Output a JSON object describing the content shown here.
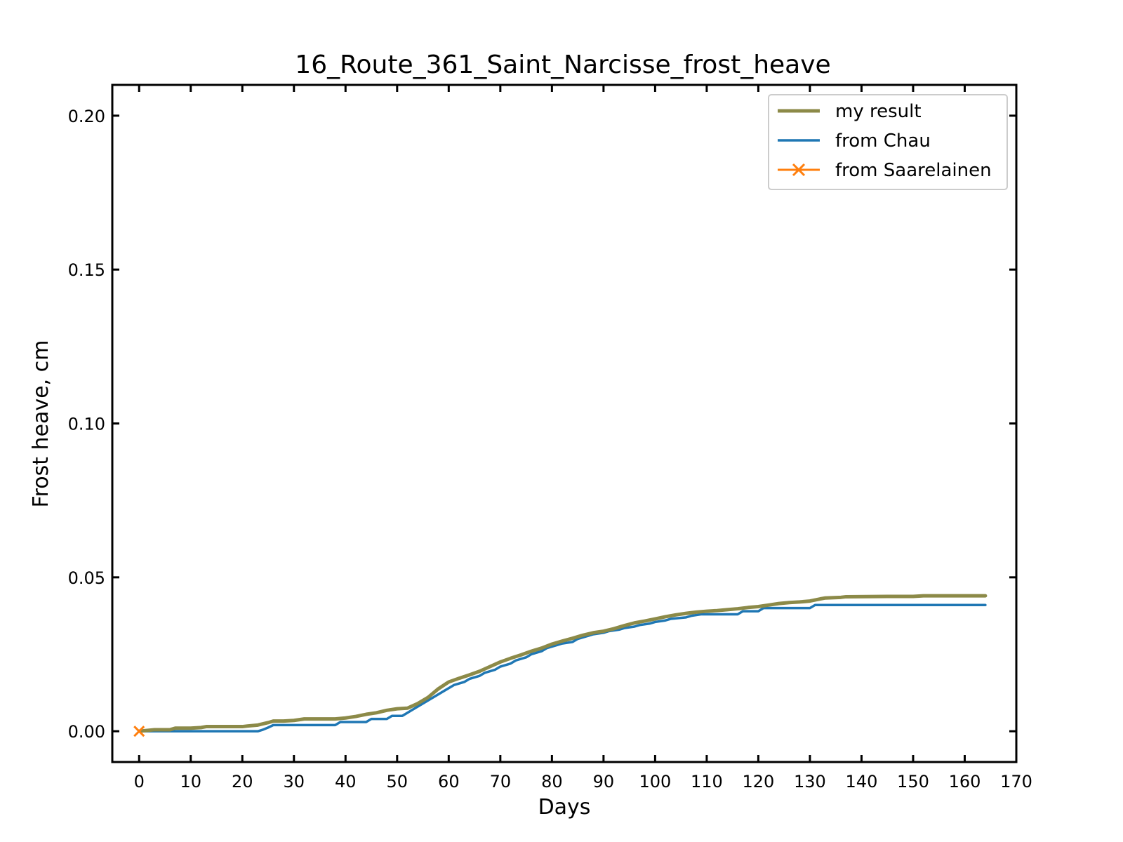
{
  "chart_data": {
    "type": "line",
    "title": "16_Route_361_Saint_Narcisse_frost_heave",
    "xlabel": "Days",
    "ylabel": "Frost heave, cm",
    "xlim": [
      -5.2,
      170
    ],
    "ylim": [
      -0.01,
      0.21
    ],
    "x_ticks": [
      0,
      10,
      20,
      30,
      40,
      50,
      60,
      70,
      80,
      90,
      100,
      110,
      120,
      130,
      140,
      150,
      160,
      170
    ],
    "y_ticks": [
      0.0,
      0.05,
      0.1,
      0.15,
      0.2
    ],
    "y_tick_labels": [
      "0.00",
      "0.05",
      "0.10",
      "0.15",
      "0.20"
    ],
    "grid": false,
    "legend_position": "top-right",
    "series": [
      {
        "name": "my result",
        "color": "#8c8a48",
        "marker": "none",
        "x": [
          0,
          3,
          6,
          7,
          10,
          12,
          13,
          15,
          20,
          21,
          23,
          25,
          26,
          28,
          30,
          32,
          35,
          38,
          40,
          42,
          44,
          46,
          48,
          50,
          52,
          54,
          56,
          58,
          60,
          62,
          64,
          66,
          68,
          70,
          72,
          74,
          76,
          78,
          80,
          82,
          84,
          86,
          88,
          90,
          92,
          94,
          96,
          98,
          100,
          102,
          104,
          106,
          108,
          110,
          112,
          114,
          116,
          118,
          120,
          122,
          124,
          126,
          128,
          130,
          132,
          133,
          136,
          137,
          145,
          150,
          152,
          164
        ],
        "y": [
          0.0,
          0.0005,
          0.0005,
          0.001,
          0.001,
          0.0012,
          0.0015,
          0.0015,
          0.0015,
          0.0017,
          0.002,
          0.0028,
          0.0033,
          0.0033,
          0.0035,
          0.004,
          0.004,
          0.004,
          0.0043,
          0.0048,
          0.0055,
          0.006,
          0.0068,
          0.0073,
          0.0075,
          0.009,
          0.011,
          0.0138,
          0.016,
          0.0172,
          0.0183,
          0.0195,
          0.021,
          0.0225,
          0.0237,
          0.0248,
          0.026,
          0.027,
          0.0283,
          0.0293,
          0.0302,
          0.0312,
          0.032,
          0.0325,
          0.0333,
          0.0343,
          0.0352,
          0.0358,
          0.0365,
          0.0372,
          0.0378,
          0.0383,
          0.0387,
          0.039,
          0.0392,
          0.0395,
          0.0398,
          0.0402,
          0.0405,
          0.041,
          0.0415,
          0.0418,
          0.042,
          0.0423,
          0.043,
          0.0433,
          0.0435,
          0.0437,
          0.0438,
          0.0438,
          0.044,
          0.044
        ]
      },
      {
        "name": "from Chau",
        "color": "#1f77b4",
        "marker": "none",
        "x": [
          0,
          23,
          24,
          25,
          26,
          38,
          39,
          44,
          45,
          48,
          49,
          51,
          52,
          53,
          55,
          57,
          60,
          61,
          63,
          64,
          66,
          67,
          69,
          70,
          72,
          73,
          75,
          76,
          78,
          79,
          81,
          82,
          84,
          85,
          87,
          88,
          90,
          91,
          93,
          94,
          96,
          97,
          99,
          100,
          102,
          103,
          106,
          107,
          109,
          110,
          116,
          117,
          120,
          121,
          130,
          131,
          164
        ],
        "y": [
          0.0,
          0.0,
          0.0005,
          0.0012,
          0.002,
          0.002,
          0.003,
          0.003,
          0.004,
          0.004,
          0.005,
          0.005,
          0.006,
          0.007,
          0.009,
          0.011,
          0.014,
          0.015,
          0.016,
          0.017,
          0.018,
          0.019,
          0.02,
          0.021,
          0.022,
          0.023,
          0.024,
          0.025,
          0.026,
          0.027,
          0.028,
          0.0285,
          0.029,
          0.03,
          0.031,
          0.0315,
          0.032,
          0.0325,
          0.033,
          0.0335,
          0.034,
          0.0345,
          0.035,
          0.0355,
          0.036,
          0.0365,
          0.037,
          0.0375,
          0.038,
          0.038,
          0.038,
          0.039,
          0.039,
          0.04,
          0.04,
          0.041,
          0.041
        ]
      },
      {
        "name": "from Saarelainen",
        "color": "#ff7f0e",
        "marker": "x",
        "x": [
          0
        ],
        "y": [
          0.0
        ]
      }
    ]
  }
}
